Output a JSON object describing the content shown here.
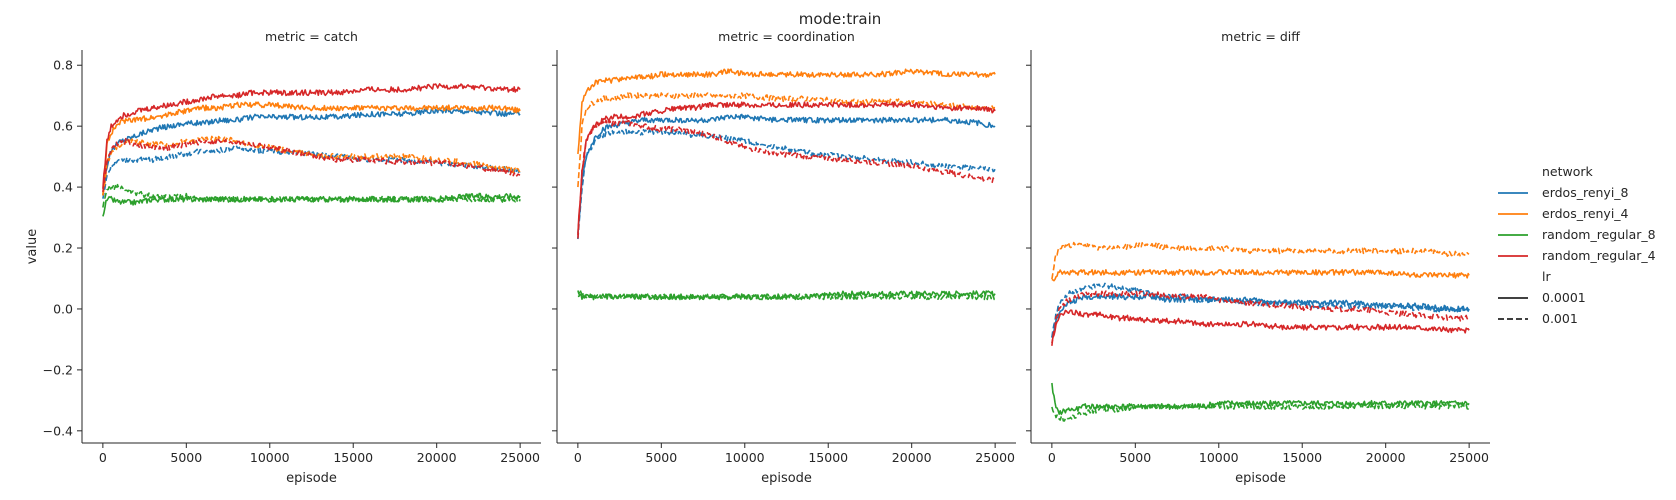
{
  "suptitle": "mode:train",
  "chart_data": {
    "type": "line",
    "suptitle": "mode:train",
    "xlabel": "episode",
    "ylabel": "value",
    "xlim": [
      -1250,
      26250
    ],
    "ylim": [
      -0.44,
      0.85
    ],
    "xticks": [
      0,
      5000,
      10000,
      15000,
      20000,
      25000
    ],
    "xtick_labels": [
      "0",
      "5000",
      "10000",
      "15000",
      "20000",
      "25000"
    ],
    "yticks": [
      -0.4,
      -0.2,
      0.0,
      0.2,
      0.4,
      0.6,
      0.8
    ],
    "ytick_labels": [
      "−0.4",
      "−0.2",
      "0.0",
      "0.2",
      "0.4",
      "0.6",
      "0.8"
    ],
    "grid": false,
    "legend": {
      "placement": "right",
      "hue_title": "network",
      "hue_entries": [
        {
          "label": "erdos_renyi_8",
          "color": "#1f77b4"
        },
        {
          "label": "erdos_renyi_4",
          "color": "#ff7f0e"
        },
        {
          "label": "random_regular_8",
          "color": "#2ca02c"
        },
        {
          "label": "random_regular_4",
          "color": "#d62728"
        }
      ],
      "style_title": "lr",
      "style_entries": [
        {
          "label": "0.0001",
          "dash": "solid"
        },
        {
          "label": "0.001",
          "dash": "dashed"
        }
      ]
    },
    "x": [
      0,
      250,
      500,
      1000,
      1500,
      2000,
      3000,
      4000,
      5000,
      6000,
      7000,
      8000,
      9000,
      10000,
      12000,
      14000,
      16000,
      18000,
      20000,
      22000,
      24000,
      25000
    ],
    "panels": [
      {
        "title": "metric = catch",
        "series": [
          {
            "network": "erdos_renyi_8",
            "lr": "0.0001",
            "values": [
              0.38,
              0.47,
              0.52,
              0.55,
              0.56,
              0.57,
              0.59,
              0.6,
              0.61,
              0.61,
              0.62,
              0.62,
              0.63,
              0.63,
              0.63,
              0.63,
              0.64,
              0.64,
              0.65,
              0.65,
              0.64,
              0.64
            ]
          },
          {
            "network": "erdos_renyi_8",
            "lr": "0.001",
            "values": [
              0.36,
              0.44,
              0.47,
              0.49,
              0.49,
              0.49,
              0.49,
              0.5,
              0.51,
              0.52,
              0.52,
              0.53,
              0.52,
              0.52,
              0.51,
              0.5,
              0.49,
              0.49,
              0.48,
              0.47,
              0.46,
              0.45
            ]
          },
          {
            "network": "erdos_renyi_4",
            "lr": "0.0001",
            "values": [
              0.38,
              0.54,
              0.58,
              0.61,
              0.62,
              0.62,
              0.63,
              0.64,
              0.65,
              0.66,
              0.66,
              0.67,
              0.67,
              0.67,
              0.66,
              0.66,
              0.66,
              0.66,
              0.66,
              0.66,
              0.66,
              0.65
            ]
          },
          {
            "network": "erdos_renyi_4",
            "lr": "0.001",
            "values": [
              0.37,
              0.48,
              0.51,
              0.54,
              0.55,
              0.55,
              0.54,
              0.54,
              0.55,
              0.56,
              0.56,
              0.55,
              0.54,
              0.53,
              0.51,
              0.5,
              0.5,
              0.5,
              0.49,
              0.48,
              0.46,
              0.45
            ]
          },
          {
            "network": "random_regular_8",
            "lr": "0.0001",
            "values": [
              0.31,
              0.36,
              0.36,
              0.35,
              0.35,
              0.35,
              0.36,
              0.36,
              0.36,
              0.36,
              0.36,
              0.36,
              0.36,
              0.36,
              0.36,
              0.36,
              0.36,
              0.36,
              0.36,
              0.37,
              0.37,
              0.37
            ]
          },
          {
            "network": "random_regular_8",
            "lr": "0.001",
            "values": [
              0.33,
              0.39,
              0.4,
              0.4,
              0.39,
              0.38,
              0.37,
              0.37,
              0.37,
              0.36,
              0.36,
              0.36,
              0.36,
              0.36,
              0.36,
              0.36,
              0.36,
              0.36,
              0.36,
              0.36,
              0.36,
              0.36
            ]
          },
          {
            "network": "random_regular_4",
            "lr": "0.0001",
            "values": [
              0.4,
              0.55,
              0.6,
              0.63,
              0.64,
              0.65,
              0.66,
              0.67,
              0.68,
              0.69,
              0.7,
              0.7,
              0.71,
              0.71,
              0.71,
              0.71,
              0.72,
              0.72,
              0.73,
              0.73,
              0.72,
              0.72
            ]
          },
          {
            "network": "random_regular_4",
            "lr": "0.001",
            "values": [
              0.38,
              0.49,
              0.52,
              0.55,
              0.55,
              0.54,
              0.53,
              0.53,
              0.54,
              0.55,
              0.55,
              0.55,
              0.54,
              0.53,
              0.51,
              0.49,
              0.49,
              0.48,
              0.48,
              0.47,
              0.45,
              0.44
            ]
          }
        ]
      },
      {
        "title": "metric = coordination",
        "series": [
          {
            "network": "erdos_renyi_8",
            "lr": "0.0001",
            "values": [
              0.24,
              0.42,
              0.5,
              0.56,
              0.59,
              0.6,
              0.61,
              0.62,
              0.62,
              0.62,
              0.62,
              0.62,
              0.63,
              0.63,
              0.62,
              0.62,
              0.62,
              0.62,
              0.62,
              0.62,
              0.61,
              0.6
            ]
          },
          {
            "network": "erdos_renyi_8",
            "lr": "0.001",
            "values": [
              0.23,
              0.4,
              0.5,
              0.55,
              0.57,
              0.58,
              0.58,
              0.58,
              0.58,
              0.58,
              0.57,
              0.57,
              0.56,
              0.55,
              0.53,
              0.51,
              0.5,
              0.49,
              0.48,
              0.47,
              0.46,
              0.46
            ]
          },
          {
            "network": "erdos_renyi_4",
            "lr": "0.0001",
            "values": [
              0.5,
              0.68,
              0.72,
              0.74,
              0.75,
              0.75,
              0.76,
              0.76,
              0.77,
              0.77,
              0.77,
              0.77,
              0.78,
              0.77,
              0.77,
              0.77,
              0.77,
              0.77,
              0.78,
              0.77,
              0.77,
              0.77
            ]
          },
          {
            "network": "erdos_renyi_4",
            "lr": "0.001",
            "values": [
              0.4,
              0.6,
              0.66,
              0.68,
              0.69,
              0.69,
              0.7,
              0.7,
              0.7,
              0.7,
              0.7,
              0.7,
              0.7,
              0.7,
              0.69,
              0.69,
              0.68,
              0.68,
              0.68,
              0.67,
              0.66,
              0.66
            ]
          },
          {
            "network": "random_regular_8",
            "lr": "0.0001",
            "values": [
              0.05,
              0.04,
              0.04,
              0.04,
              0.04,
              0.04,
              0.04,
              0.04,
              0.04,
              0.04,
              0.04,
              0.04,
              0.04,
              0.04,
              0.04,
              0.04,
              0.05,
              0.05,
              0.05,
              0.05,
              0.05,
              0.05
            ]
          },
          {
            "network": "random_regular_8",
            "lr": "0.001",
            "values": [
              0.06,
              0.05,
              0.04,
              0.04,
              0.04,
              0.04,
              0.04,
              0.04,
              0.04,
              0.04,
              0.04,
              0.04,
              0.04,
              0.04,
              0.04,
              0.04,
              0.04,
              0.04,
              0.04,
              0.04,
              0.04,
              0.04
            ]
          },
          {
            "network": "random_regular_4",
            "lr": "0.0001",
            "values": [
              0.25,
              0.45,
              0.55,
              0.6,
              0.62,
              0.63,
              0.63,
              0.64,
              0.65,
              0.66,
              0.66,
              0.67,
              0.67,
              0.67,
              0.67,
              0.67,
              0.67,
              0.67,
              0.67,
              0.66,
              0.66,
              0.65
            ]
          },
          {
            "network": "random_regular_4",
            "lr": "0.001",
            "values": [
              0.23,
              0.45,
              0.56,
              0.6,
              0.61,
              0.61,
              0.61,
              0.6,
              0.59,
              0.59,
              0.58,
              0.57,
              0.55,
              0.53,
              0.51,
              0.5,
              0.49,
              0.48,
              0.47,
              0.45,
              0.43,
              0.42
            ]
          }
        ]
      },
      {
        "title": "metric = diff",
        "series": [
          {
            "network": "erdos_renyi_8",
            "lr": "0.0001",
            "values": [
              -0.1,
              -0.04,
              0.0,
              0.02,
              0.03,
              0.04,
              0.04,
              0.04,
              0.04,
              0.04,
              0.03,
              0.03,
              0.03,
              0.03,
              0.03,
              0.02,
              0.02,
              0.02,
              0.01,
              0.01,
              0.0,
              0.0
            ]
          },
          {
            "network": "erdos_renyi_8",
            "lr": "0.001",
            "values": [
              -0.09,
              -0.02,
              0.02,
              0.05,
              0.06,
              0.07,
              0.08,
              0.07,
              0.06,
              0.05,
              0.04,
              0.04,
              0.03,
              0.03,
              0.02,
              0.02,
              0.01,
              0.01,
              0.01,
              0.0,
              0.0,
              0.0
            ]
          },
          {
            "network": "erdos_renyi_4",
            "lr": "0.0001",
            "values": [
              0.09,
              0.11,
              0.12,
              0.12,
              0.12,
              0.12,
              0.12,
              0.12,
              0.12,
              0.12,
              0.12,
              0.12,
              0.12,
              0.12,
              0.12,
              0.12,
              0.12,
              0.12,
              0.12,
              0.11,
              0.11,
              0.11
            ]
          },
          {
            "network": "erdos_renyi_4",
            "lr": "0.001",
            "values": [
              0.1,
              0.18,
              0.2,
              0.21,
              0.21,
              0.21,
              0.2,
              0.2,
              0.21,
              0.21,
              0.2,
              0.2,
              0.2,
              0.2,
              0.19,
              0.19,
              0.19,
              0.19,
              0.19,
              0.19,
              0.18,
              0.18
            ]
          },
          {
            "network": "random_regular_8",
            "lr": "0.0001",
            "values": [
              -0.25,
              -0.33,
              -0.34,
              -0.33,
              -0.33,
              -0.32,
              -0.32,
              -0.32,
              -0.32,
              -0.32,
              -0.32,
              -0.32,
              -0.32,
              -0.31,
              -0.31,
              -0.31,
              -0.31,
              -0.31,
              -0.31,
              -0.31,
              -0.31,
              -0.31
            ]
          },
          {
            "network": "random_regular_8",
            "lr": "0.001",
            "values": [
              -0.32,
              -0.35,
              -0.36,
              -0.36,
              -0.35,
              -0.34,
              -0.33,
              -0.33,
              -0.32,
              -0.32,
              -0.32,
              -0.32,
              -0.32,
              -0.32,
              -0.32,
              -0.32,
              -0.32,
              -0.32,
              -0.32,
              -0.32,
              -0.32,
              -0.32
            ]
          },
          {
            "network": "random_regular_4",
            "lr": "0.0001",
            "values": [
              -0.12,
              -0.05,
              -0.02,
              -0.01,
              -0.01,
              -0.02,
              -0.02,
              -0.03,
              -0.03,
              -0.04,
              -0.04,
              -0.04,
              -0.05,
              -0.05,
              -0.05,
              -0.06,
              -0.06,
              -0.06,
              -0.06,
              -0.06,
              -0.07,
              -0.07
            ]
          },
          {
            "network": "random_regular_4",
            "lr": "0.001",
            "values": [
              -0.12,
              -0.03,
              0.01,
              0.03,
              0.04,
              0.05,
              0.05,
              0.05,
              0.05,
              0.05,
              0.04,
              0.04,
              0.04,
              0.03,
              0.02,
              0.01,
              0.0,
              0.0,
              -0.01,
              -0.02,
              -0.03,
              -0.03
            ]
          }
        ]
      }
    ]
  }
}
